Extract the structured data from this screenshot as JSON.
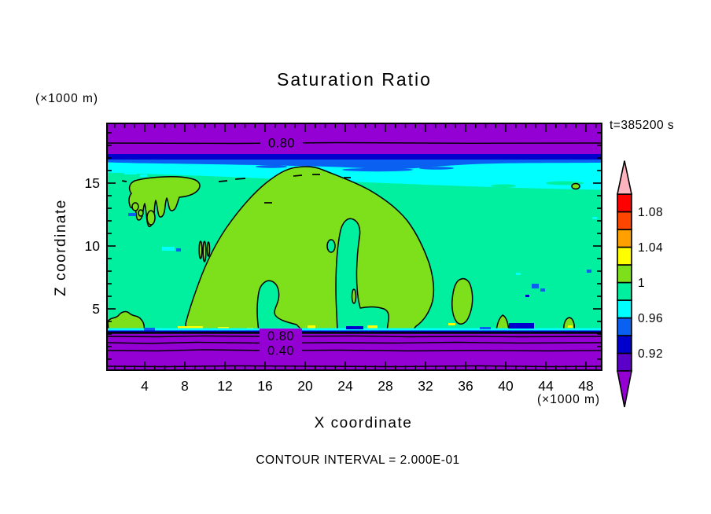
{
  "title": "Saturation Ratio",
  "annotations": {
    "time_label": "t=385200 s",
    "contour_note": "CONTOUR INTERVAL = 2.000E-01",
    "y_unit_label": "(×1000 m)",
    "x_unit_label": "(×1000 m)"
  },
  "x_axis": {
    "label": "X coordinate",
    "tick_values": [
      4,
      8,
      12,
      16,
      20,
      24,
      28,
      32,
      36,
      40,
      44,
      48
    ]
  },
  "y_axis": {
    "label": "Z coordinate",
    "tick_values": [
      5,
      10,
      15
    ]
  },
  "contour_labels": {
    "top_band": "0.80",
    "bottom_band_upper": "0.80",
    "bottom_band_lower": "0.40"
  },
  "colorbar": {
    "over_arrow_color": "#FFB3BE",
    "under_arrow_color": "#9400D3",
    "segment_colors_bottom_to_top": [
      "#5A00C8",
      "#0000CD",
      "#0A60F0",
      "#00FFFF",
      "#00F0A0",
      "#7DE01A",
      "#FFFF00",
      "#FFA000",
      "#FF4600",
      "#FF0000"
    ],
    "labels": [
      {
        "text": "0.92",
        "boundary_index": 1
      },
      {
        "text": "0.96",
        "boundary_index": 3
      },
      {
        "text": "1",
        "boundary_index": 5
      },
      {
        "text": "1.04",
        "boundary_index": 7
      },
      {
        "text": "1.08",
        "boundary_index": 9
      }
    ]
  },
  "palette": {
    "purple_band": "#9400D3",
    "navy": "#0000CD",
    "blue": "#0A60F0",
    "cyan": "#00FFFF",
    "spring_green": "#00F0A0",
    "chartreuse": "#7DE01A",
    "yellow": "#FFFF00",
    "frame": "#000000"
  },
  "chart_data": {
    "type": "filled_contour",
    "title": "Saturation Ratio",
    "xlabel": "X coordinate (×1000 m)",
    "ylabel": "Z coordinate (×1000 m)",
    "time_annotation": "t=385200 s",
    "x_range": [
      0,
      49.5
    ],
    "z_range": [
      0.25,
      19.8
    ],
    "fill_levels": [
      0.9,
      0.92,
      0.94,
      0.96,
      0.98,
      1.0,
      1.02,
      1.04,
      1.06,
      1.08,
      1.1
    ],
    "fill_colors_bottom_to_top": [
      "#5A00C8",
      "#0000CD",
      "#0A60F0",
      "#00FFFF",
      "#00F0A0",
      "#7DE01A",
      "#FFFF00",
      "#FFA000",
      "#FF4600",
      "#FF0000"
    ],
    "under_range_color": "#9400D3",
    "over_range_color": "#FFB3BE",
    "line_contour_interval": 0.2,
    "labeled_contour_values": [
      0.4,
      0.8
    ],
    "features": [
      {
        "name": "top-subsaturated-band",
        "value": "S < 0.90",
        "x_extent": [
          0,
          49.5
        ],
        "z_extent": [
          17.3,
          19.8
        ],
        "contour_080_at_z": 18.2
      },
      {
        "name": "top-transition-band",
        "value": "S 0.92–0.98 (navy/blue/cyan)",
        "x_extent": [
          0,
          49.5
        ],
        "z_extent": [
          16.2,
          17.3
        ]
      },
      {
        "name": "interior",
        "value": "S 0.98–1.00",
        "x_extent": [
          0,
          49.5
        ],
        "z_extent": [
          3.3,
          16.2
        ]
      },
      {
        "name": "main-supersaturated-dome",
        "value": "S 1.00–1.02",
        "x_extent": [
          7.9,
          30.5
        ],
        "z_extent": [
          3.3,
          16.2
        ]
      },
      {
        "name": "upper-left-island",
        "value": "S ≥ 1.00 with finger-like lower edge",
        "x_extent": [
          2.4,
          9.4
        ],
        "z_extent": [
          13.1,
          15.3
        ]
      },
      {
        "name": "right-patch",
        "value": "S ≥ 1.00",
        "x_extent": [
          34.3,
          36.6
        ],
        "z_extent": [
          4.6,
          8.3
        ]
      },
      {
        "name": "surface-subsaturated-layer",
        "value": "S < 0.90",
        "x_extent": [
          0,
          49.5
        ],
        "z_extent": [
          0.25,
          3.1
        ],
        "line_contours_at_z": {
          "0.80": 2.75,
          "0.60": 2.25,
          "0.40": 1.7,
          "0.20": 0.45
        }
      },
      {
        "name": "surface-supersaturation-slivers",
        "value": "S 1.02–1.04 yellow dashes at layer top",
        "z_extent": [
          3.1,
          3.4
        ]
      }
    ]
  }
}
